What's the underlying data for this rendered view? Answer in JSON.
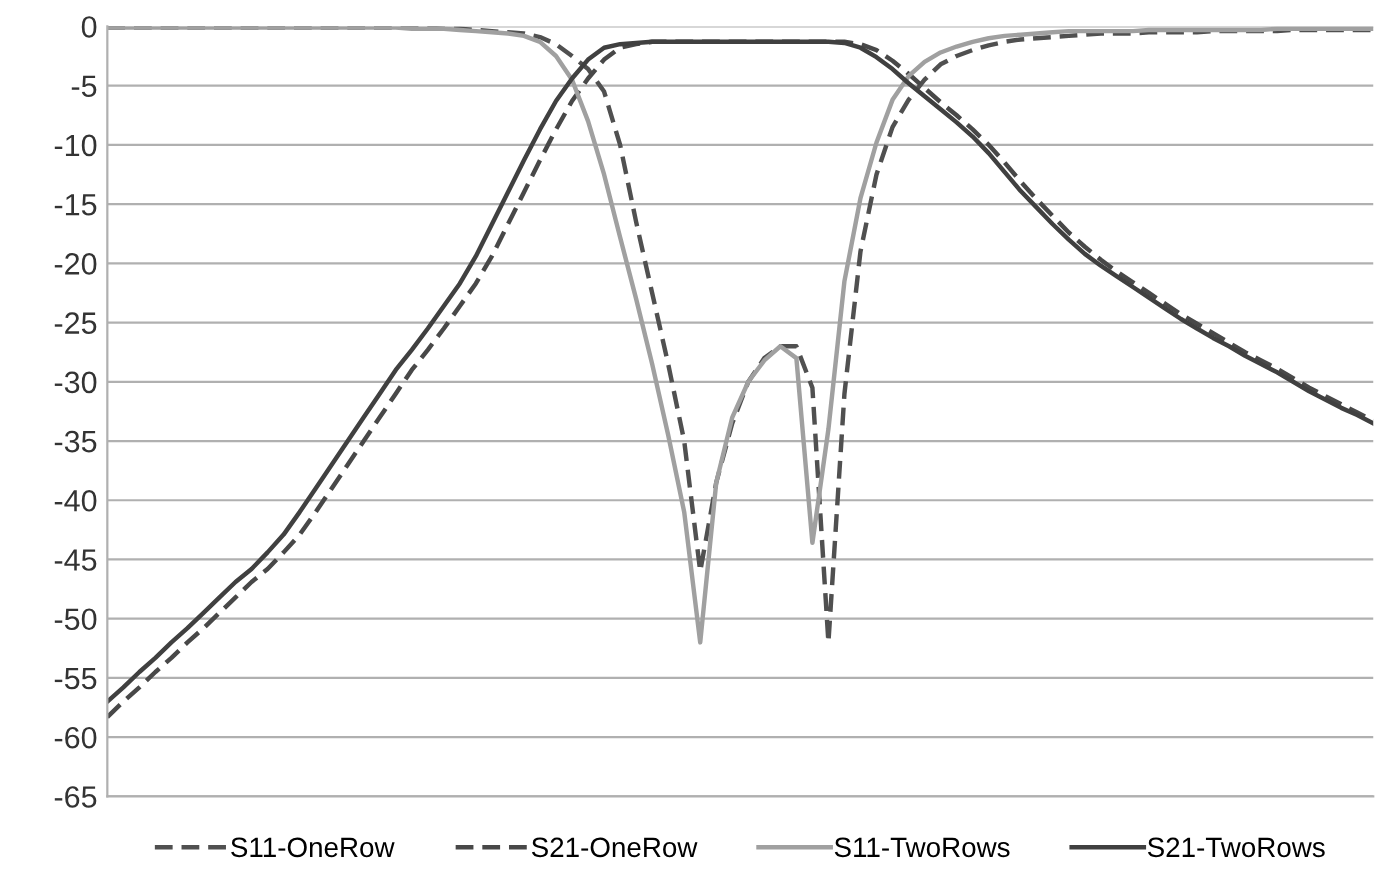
{
  "chart_data": {
    "type": "line",
    "categories": [
      null,
      null,
      null,
      null,
      null,
      null,
      null,
      null,
      null,
      null,
      null,
      null,
      null,
      null,
      null,
      null,
      null,
      null,
      null,
      null,
      null,
      null,
      null,
      null,
      null,
      null,
      null,
      null,
      null,
      null,
      null,
      null,
      null,
      null,
      null,
      null,
      null,
      null,
      null,
      null,
      null,
      null,
      null,
      null,
      null,
      null,
      null,
      null,
      null,
      null,
      null,
      null,
      null,
      null,
      null,
      null,
      null,
      null,
      null,
      null,
      null,
      null,
      null,
      null,
      null,
      null,
      null,
      null,
      null,
      null,
      null,
      null,
      null,
      null,
      null,
      null,
      null,
      null,
      null,
      null
    ],
    "ylim": [
      -65,
      0
    ],
    "yticks": [
      0,
      -5,
      -10,
      -15,
      -20,
      -25,
      -30,
      -35,
      -40,
      -45,
      -50,
      -55,
      -60,
      -65
    ],
    "grid": "y",
    "legend": "bottom",
    "tick_labels": "y",
    "marker": "none",
    "series": [
      {
        "name": "S11-OneRow",
        "color": "#505050",
        "line_style": "dashed",
        "values": [
          -0.1,
          -0.1,
          -0.1,
          -0.1,
          -0.1,
          -0.1,
          -0.1,
          -0.1,
          -0.1,
          -0.1,
          -0.1,
          -0.1,
          -0.1,
          -0.1,
          -0.1,
          -0.1,
          -0.1,
          -0.1,
          -0.1,
          -0.1,
          -0.1,
          -0.2,
          -0.2,
          -0.3,
          -0.4,
          -0.5,
          -0.6,
          -0.9,
          -1.5,
          -2.5,
          -3.6,
          -5.5,
          -10,
          -16.5,
          -22.5,
          -28.5,
          -35,
          -46,
          -38.5,
          -33.5,
          -30,
          -28,
          -27,
          -27,
          -30.5,
          -52,
          -31,
          -19,
          -12.5,
          -8.5,
          -6.2,
          -4.5,
          -3.2,
          -2.5,
          -2,
          -1.6,
          -1.3,
          -1.1,
          -1.0,
          -0.9,
          -0.8,
          -0.7,
          -0.6,
          -0.6,
          -0.6,
          -0.5,
          -0.5,
          -0.5,
          -0.5,
          -0.4,
          -0.4,
          -0.4,
          -0.4,
          -0.4,
          -0.3,
          -0.3,
          -0.3,
          -0.3,
          -0.3,
          -0.3
        ]
      },
      {
        "name": "S21-OneRow",
        "color": "#484848",
        "line_style": "dashed",
        "values": [
          -58.3,
          -57,
          -55.8,
          -54.5,
          -53.3,
          -52,
          -50.8,
          -49.5,
          -48.2,
          -46.9,
          -45.8,
          -44.4,
          -42.9,
          -41,
          -39,
          -37,
          -35,
          -33,
          -31,
          -29,
          -27.3,
          -25.5,
          -23.6,
          -21.7,
          -19.4,
          -16.7,
          -14,
          -11.3,
          -8.7,
          -6.3,
          -4.4,
          -2.8,
          -1.8,
          -1.5,
          -1.3,
          -1.3,
          -1.3,
          -1.3,
          -1.3,
          -1.3,
          -1.3,
          -1.3,
          -1.3,
          -1.3,
          -1.3,
          -1.3,
          -1.3,
          -1.5,
          -2.0,
          -2.9,
          -4.0,
          -5.2,
          -6.4,
          -7.5,
          -8.7,
          -10.0,
          -11.5,
          -13.1,
          -14.6,
          -16,
          -17.4,
          -18.6,
          -19.7,
          -20.7,
          -21.6,
          -22.5,
          -23.4,
          -24.3,
          -25.1,
          -25.9,
          -26.7,
          -27.5,
          -28.2,
          -28.9,
          -29.7,
          -30.5,
          -31.2,
          -31.9,
          -32.6,
          -33.3
        ]
      },
      {
        "name": "S11-TwoRows",
        "color": "#a0a0a0",
        "line_style": "solid",
        "values": [
          -0.1,
          -0.1,
          -0.1,
          -0.1,
          -0.1,
          -0.1,
          -0.1,
          -0.1,
          -0.1,
          -0.1,
          -0.1,
          -0.1,
          -0.1,
          -0.1,
          -0.1,
          -0.1,
          -0.1,
          -0.1,
          -0.1,
          -0.2,
          -0.2,
          -0.2,
          -0.3,
          -0.4,
          -0.5,
          -0.6,
          -0.8,
          -1.3,
          -2.5,
          -4.5,
          -8,
          -12.5,
          -17.8,
          -23,
          -28.5,
          -34.5,
          -41,
          -52,
          -38.5,
          -33,
          -30,
          -28.2,
          -27,
          -28,
          -43.6,
          -34,
          -21.5,
          -14.5,
          -9.8,
          -6.2,
          -4.2,
          -3,
          -2.2,
          -1.7,
          -1.3,
          -1.0,
          -0.8,
          -0.7,
          -0.6,
          -0.5,
          -0.4,
          -0.4,
          -0.4,
          -0.4,
          -0.4,
          -0.3,
          -0.3,
          -0.3,
          -0.3,
          -0.3,
          -0.3,
          -0.3,
          -0.3,
          -0.2,
          -0.2,
          -0.2,
          -0.2,
          -0.2,
          -0.2,
          -0.2
        ]
      },
      {
        "name": "S21-TwoRows",
        "color": "#404040",
        "line_style": "solid",
        "values": [
          -57,
          -55.8,
          -54.5,
          -53.3,
          -52,
          -50.8,
          -49.5,
          -48.2,
          -46.9,
          -45.8,
          -44.4,
          -42.9,
          -41,
          -39,
          -37,
          -35,
          -33,
          -31,
          -29,
          -27.3,
          -25.5,
          -23.6,
          -21.7,
          -19.4,
          -16.7,
          -14,
          -11.3,
          -8.7,
          -6.3,
          -4.4,
          -2.8,
          -1.8,
          -1.5,
          -1.4,
          -1.3,
          -1.3,
          -1.3,
          -1.3,
          -1.3,
          -1.3,
          -1.3,
          -1.3,
          -1.3,
          -1.3,
          -1.3,
          -1.3,
          -1.4,
          -1.8,
          -2.6,
          -3.6,
          -4.8,
          -5.9,
          -7,
          -8.1,
          -9.3,
          -10.7,
          -12.3,
          -13.9,
          -15.3,
          -16.7,
          -18,
          -19.2,
          -20.2,
          -21.1,
          -22,
          -22.9,
          -23.8,
          -24.7,
          -25.5,
          -26.3,
          -27,
          -27.8,
          -28.5,
          -29.2,
          -30,
          -30.8,
          -31.5,
          -32.2,
          -32.8,
          -33.5
        ]
      }
    ]
  }
}
